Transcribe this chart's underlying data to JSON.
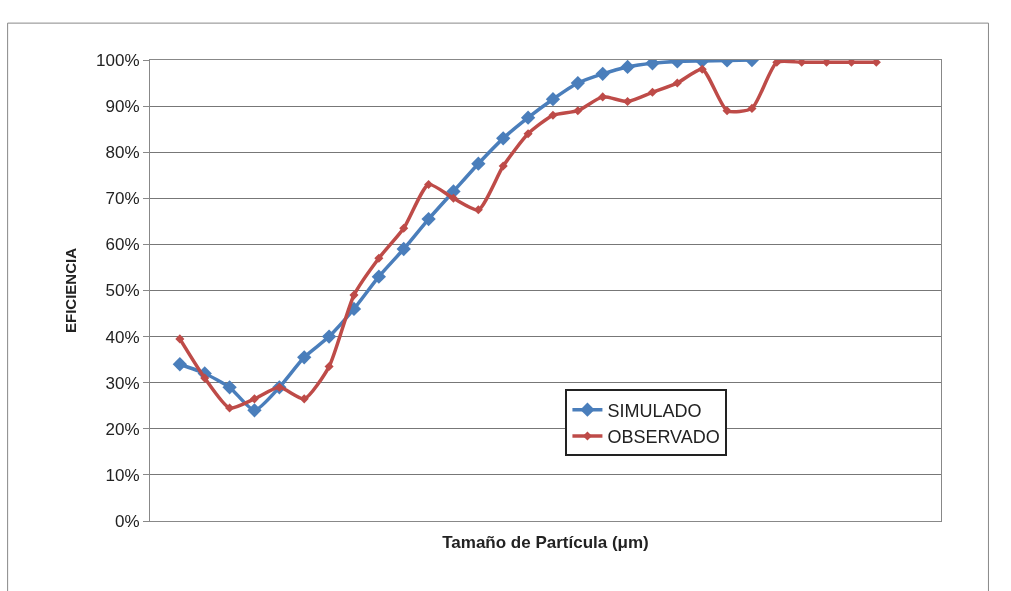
{
  "chart_data": {
    "type": "line",
    "xlabel": "Tamaño de Partícula (μm)",
    "ylabel": "EFICIENCIA",
    "categories": [
      null,
      null,
      null,
      null,
      null,
      null,
      null,
      null,
      null,
      null,
      null,
      null,
      null,
      null,
      null,
      null,
      null,
      null,
      null,
      null,
      null,
      null,
      null,
      null,
      null,
      null,
      null,
      null,
      null
    ],
    "series": [
      {
        "name": "SIMULADO",
        "color": "#4a7ebb",
        "values": [
          0.34,
          0.32,
          0.29,
          0.24,
          0.29,
          0.355,
          0.4,
          0.46,
          0.53,
          0.59,
          0.655,
          0.715,
          0.775,
          0.83,
          0.875,
          0.915,
          0.95,
          0.97,
          0.985,
          0.993,
          0.997,
          0.998,
          0.999,
          1.0,
          null,
          null,
          null,
          null,
          null
        ]
      },
      {
        "name": "OBSERVADO",
        "color": "#be4b48",
        "values": [
          0.395,
          0.31,
          0.245,
          0.265,
          0.29,
          0.265,
          0.335,
          0.49,
          0.57,
          0.635,
          0.73,
          0.7,
          0.675,
          0.77,
          0.84,
          0.88,
          0.89,
          0.92,
          0.91,
          0.93,
          0.95,
          0.98,
          0.89,
          0.895,
          0.995,
          0.995,
          0.995,
          0.995,
          0.995
        ]
      }
    ],
    "ylim": [
      0,
      1
    ],
    "yticks": [
      {
        "value": 0,
        "label": "0%"
      },
      {
        "value": 0.1,
        "label": "10%"
      },
      {
        "value": 0.2,
        "label": "20%"
      },
      {
        "value": 0.3,
        "label": "30%"
      },
      {
        "value": 0.4,
        "label": "40%"
      },
      {
        "value": 0.5,
        "label": "50%"
      },
      {
        "value": 0.6,
        "label": "60%"
      },
      {
        "value": 0.7,
        "label": "70%"
      },
      {
        "value": 0.8,
        "label": "80%"
      },
      {
        "value": 0.9,
        "label": "90%"
      },
      {
        "value": 1,
        "label": "100%"
      }
    ],
    "tick_labels": "y",
    "grid": "y",
    "legend": "bottom right",
    "marker": "diamond",
    "line_style": "solid"
  }
}
